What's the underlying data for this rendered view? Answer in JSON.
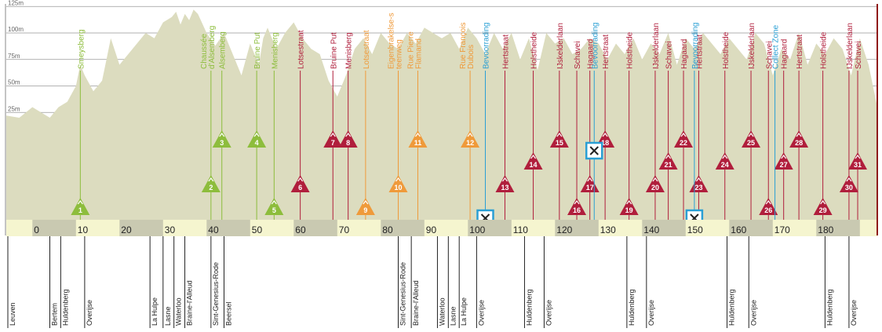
{
  "chart_data": {
    "type": "area",
    "title": "",
    "xlabel": "",
    "ylabel": "",
    "xlim": [
      -6,
      194
    ],
    "ylim": [
      0,
      125
    ],
    "elevation_ticks": [
      {
        "value": 125,
        "label": "125m"
      },
      {
        "value": 100,
        "label": "100m"
      },
      {
        "value": 75,
        "label": "75m"
      },
      {
        "value": 50,
        "label": "50m"
      },
      {
        "value": 25,
        "label": "25m"
      }
    ],
    "km_ticks": [
      0,
      10,
      20,
      30,
      40,
      50,
      60,
      70,
      80,
      90,
      100,
      110,
      120,
      130,
      140,
      150,
      160,
      170,
      180
    ],
    "profile": {
      "x": [
        -6,
        -3,
        0,
        2,
        4,
        6,
        8,
        10,
        11,
        12,
        14,
        16,
        17,
        18,
        20,
        22,
        24,
        26,
        28,
        30,
        32,
        33,
        34,
        35,
        36,
        37,
        38,
        40,
        42,
        44,
        46,
        48,
        50,
        52,
        53,
        54,
        56,
        58,
        60,
        62,
        64,
        66,
        68,
        70,
        72,
        74,
        76,
        78,
        80,
        82,
        84,
        86,
        88,
        90,
        92,
        94,
        96,
        98,
        100,
        102,
        104,
        106,
        108,
        110,
        112,
        114,
        116,
        118,
        120,
        122,
        124,
        126,
        128,
        130,
        132,
        134,
        136,
        138,
        140,
        142,
        144,
        146,
        148,
        150,
        152,
        154,
        156,
        158,
        160,
        162,
        164,
        166,
        168,
        170,
        172,
        174,
        176,
        178,
        180,
        182,
        184,
        186,
        188,
        190,
        192,
        194
      ],
      "y": [
        22,
        20,
        30,
        25,
        20,
        30,
        35,
        50,
        70,
        60,
        45,
        55,
        75,
        95,
        70,
        80,
        90,
        100,
        95,
        110,
        115,
        120,
        108,
        118,
        112,
        122,
        118,
        100,
        88,
        100,
        80,
        60,
        90,
        70,
        95,
        105,
        85,
        100,
        110,
        95,
        85,
        80,
        55,
        40,
        60,
        85,
        95,
        80,
        100,
        90,
        85,
        100,
        90,
        105,
        100,
        95,
        100,
        85,
        105,
        95,
        80,
        100,
        85,
        100,
        75,
        95,
        65,
        100,
        90,
        95,
        80,
        85,
        95,
        90,
        75,
        90,
        80,
        95,
        75,
        90,
        80,
        100,
        70,
        95,
        85,
        100,
        90,
        80,
        95,
        85,
        75,
        100,
        90,
        60,
        85,
        75,
        100,
        70,
        90,
        80,
        95,
        85,
        60,
        95,
        70,
        30
      ]
    },
    "climbs": [
      {
        "number": "1",
        "name": "Smeysberg",
        "km": 11,
        "tier": 0,
        "category": "green"
      },
      {
        "number": "2",
        "name": "Chaussée d'Alsemberg",
        "km": 41,
        "tier": 2,
        "category": "green"
      },
      {
        "number": "3",
        "name": "Alsemberg",
        "km": 43.5,
        "tier": 4,
        "category": "green"
      },
      {
        "number": "4",
        "name": "Bruine Put",
        "km": 51.5,
        "tier": 5,
        "category": "green"
      },
      {
        "number": "5",
        "name": "Menisberg",
        "km": 55.5,
        "tier": 0,
        "category": "green"
      },
      {
        "number": "6",
        "name": "Lotsestraat",
        "km": 61.5,
        "tier": 2,
        "category": "red"
      },
      {
        "number": "7",
        "name": "Bruine Put",
        "km": 69,
        "tier": 4,
        "category": "red"
      },
      {
        "number": "8",
        "name": "Menisberg",
        "km": 72.5,
        "tier": 5,
        "category": "red"
      },
      {
        "number": "9",
        "name": "Lotsestraat",
        "km": 76.5,
        "tier": 0,
        "category": "orange"
      },
      {
        "number": "10",
        "name": "Eigenbrakelse-steenweg",
        "km": 84,
        "tier": 2,
        "category": "orange"
      },
      {
        "number": "11",
        "name": "Rue Pierre Flamand",
        "km": 88.5,
        "tier": 4,
        "category": "orange"
      },
      {
        "number": "12",
        "name": "Rue François Dubois",
        "km": 100.5,
        "tier": 5,
        "category": "orange"
      },
      {
        "number": "13",
        "name": "Hertstraat",
        "km": 108.5,
        "tier": 2,
        "category": "red"
      },
      {
        "number": "14",
        "name": "Holstheide",
        "km": 115,
        "tier": 3,
        "category": "red"
      },
      {
        "number": "15",
        "name": "IJskelderlaan",
        "km": 121,
        "tier": 5,
        "category": "red"
      },
      {
        "number": "16",
        "name": "Schavei",
        "km": 125,
        "tier": 0,
        "category": "red"
      },
      {
        "number": "17",
        "name": "Hagaard",
        "km": 128,
        "tier": 2,
        "category": "red"
      },
      {
        "number": "18",
        "name": "Hertstraat",
        "km": 131.5,
        "tier": 5,
        "category": "red"
      },
      {
        "number": "19",
        "name": "Holstheide",
        "km": 137,
        "tier": 0,
        "category": "red"
      },
      {
        "number": "20",
        "name": "IJskelderlaan",
        "km": 143,
        "tier": 2,
        "category": "red"
      },
      {
        "number": "21",
        "name": "Schavei",
        "km": 146,
        "tier": 3,
        "category": "red"
      },
      {
        "number": "22",
        "name": "Hagaard",
        "km": 149.5,
        "tier": 5,
        "category": "red"
      },
      {
        "number": "23",
        "name": "Hertstraat",
        "km": 153,
        "tier": 2,
        "category": "red"
      },
      {
        "number": "24",
        "name": "Holstheide",
        "km": 159,
        "tier": 3,
        "category": "red"
      },
      {
        "number": "25",
        "name": "IJskelderlaan",
        "km": 165,
        "tier": 5,
        "category": "red"
      },
      {
        "number": "26",
        "name": "Schavei",
        "km": 169,
        "tier": 0,
        "category": "red"
      },
      {
        "number": "27",
        "name": "Hagaard",
        "km": 172.5,
        "tier": 3,
        "category": "red"
      },
      {
        "number": "28",
        "name": "Hertstraat",
        "km": 176,
        "tier": 5,
        "category": "red"
      },
      {
        "number": "29",
        "name": "Holstheide",
        "km": 181.5,
        "tier": 0,
        "category": "red"
      },
      {
        "number": "30",
        "name": "IJskelderlaan",
        "km": 187.5,
        "tier": 2,
        "category": "red"
      },
      {
        "number": "31",
        "name": "Schavei",
        "km": 189.5,
        "tier": 3,
        "category": "red"
      }
    ],
    "stops": [
      {
        "name": "Bevoorrading",
        "km": 104,
        "tier": 0
      },
      {
        "name": "Bevoorrading",
        "km": 129,
        "tier": 4
      },
      {
        "name": "Collect Zone",
        "km": 170.5,
        "tier": null
      },
      {
        "name": "Bevoorrading",
        "km": 152,
        "tier": 0
      }
    ],
    "towns": [
      {
        "name": "Leuven",
        "km": -6
      },
      {
        "name": "Bertem",
        "km": 4
      },
      {
        "name": "Huldenberg",
        "km": 6.5
      },
      {
        "name": "Overijse",
        "km": 12
      },
      {
        "name": "La Hulpe",
        "km": 27
      },
      {
        "name": "Lasne",
        "km": 30
      },
      {
        "name": "Waterloo",
        "km": 32.5
      },
      {
        "name": "Braine-l'Alleud",
        "km": 35
      },
      {
        "name": "Sint-Genesius-Rode",
        "km": 41
      },
      {
        "name": "Beersel",
        "km": 44
      },
      {
        "name": "Sint-Genesius-Rode",
        "km": 84
      },
      {
        "name": "Braine-l'Alleud",
        "km": 87
      },
      {
        "name": "Waterloo",
        "km": 93
      },
      {
        "name": "Lasne",
        "km": 95.5
      },
      {
        "name": "La Hulpe",
        "km": 98
      },
      {
        "name": "Overijse",
        "km": 102
      },
      {
        "name": "Huldenberg",
        "km": 113
      },
      {
        "name": "Overijse",
        "km": 117.5
      },
      {
        "name": "Huldenberg",
        "km": 136.5
      },
      {
        "name": "Overijse",
        "km": 141
      },
      {
        "name": "Huldenberg",
        "km": 159.5
      },
      {
        "name": "Overijse",
        "km": 164.5
      },
      {
        "name": "Huldenberg",
        "km": 182
      },
      {
        "name": "Overijse",
        "km": 187.5
      }
    ],
    "colors": {
      "terrain": "#dcdcbf",
      "axis_band": "#f5f5cf",
      "axis_block": "#c9c9b1",
      "green": "#8dbd3c",
      "red": "#b01e3c",
      "orange": "#ef9a3a",
      "stop": "#2a9fd4",
      "finish": "#8f1a1a"
    }
  }
}
